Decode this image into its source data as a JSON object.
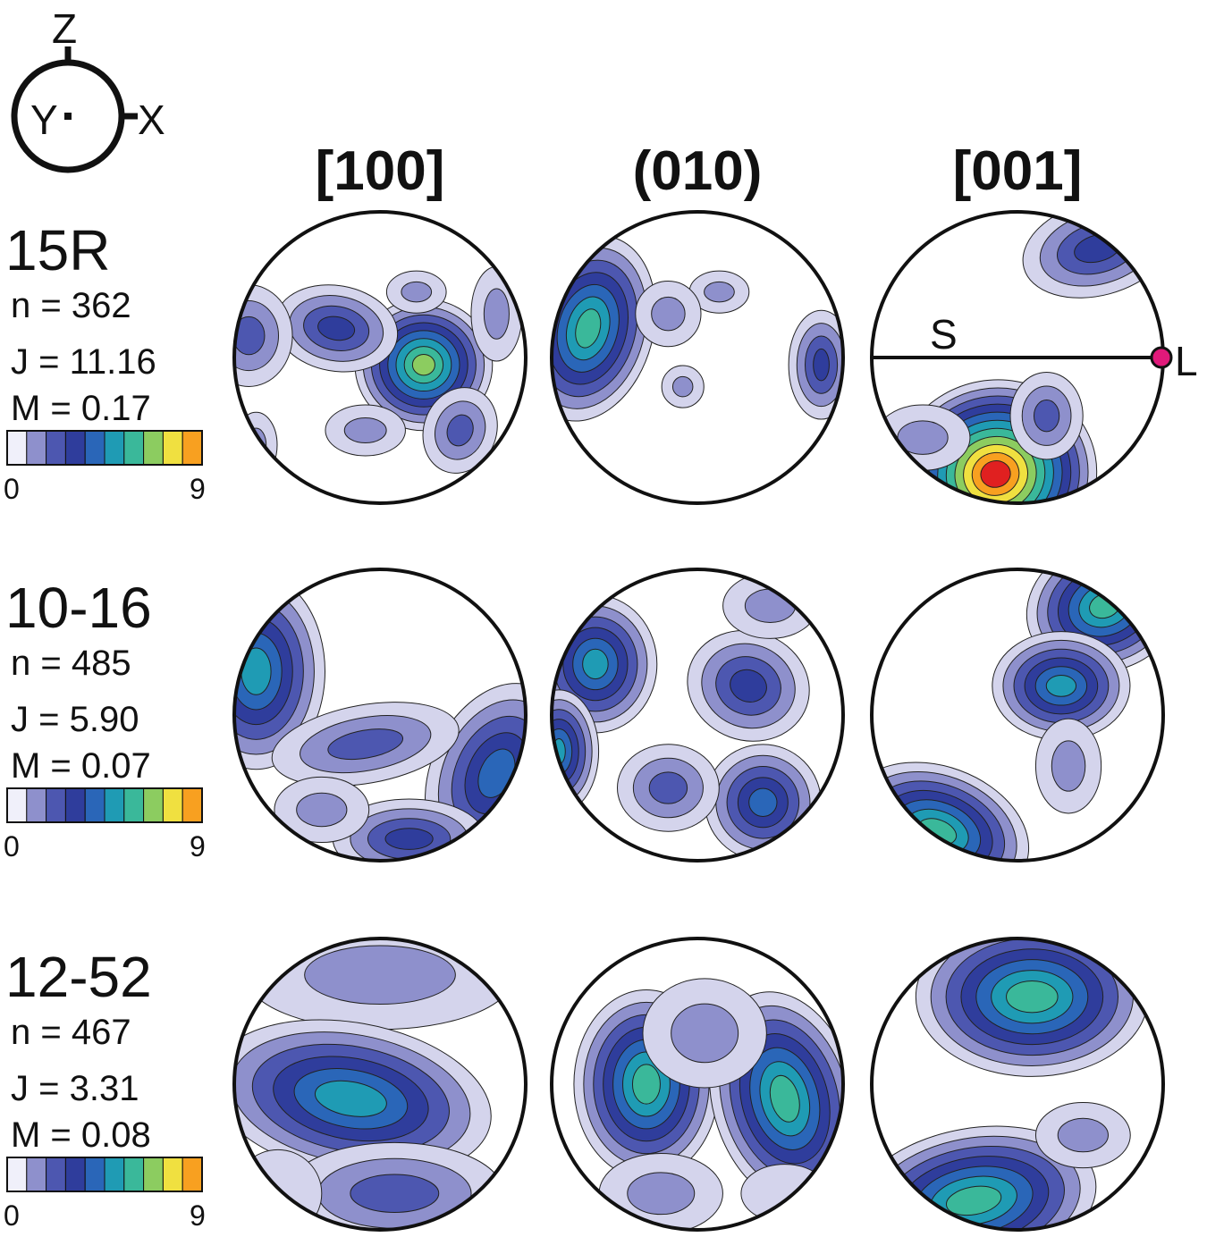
{
  "axes": {
    "z": "Z",
    "y": "Y",
    "x": "X"
  },
  "columns": [
    "[100]",
    "(010)",
    "[001]"
  ],
  "rows": [
    {
      "sample": "15R",
      "n": "n = 362",
      "j": "J = 11.16",
      "m": "M = 0.17",
      "scale_min": "0",
      "scale_max": "9"
    },
    {
      "sample": "10-16",
      "n": "n = 485",
      "j": "J = 5.90",
      "m": "M = 0.07",
      "scale_min": "0",
      "scale_max": "9"
    },
    {
      "sample": "12-52",
      "n": "n = 467",
      "j": "J = 3.31",
      "m": "M = 0.08",
      "scale_min": "0",
      "scale_max": "9"
    }
  ],
  "annotations": {
    "foliation": "S",
    "lineation": "L"
  }
}
